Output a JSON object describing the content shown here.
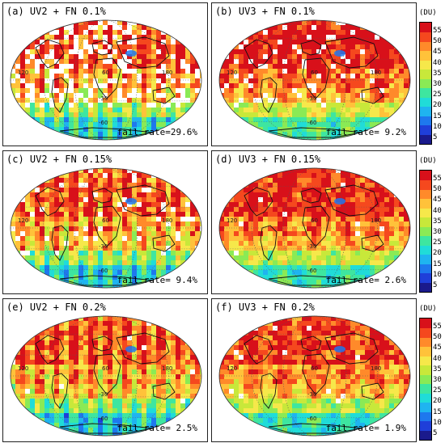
{
  "colorbar": {
    "unit": "(DU)",
    "ticks": [
      "55",
      "50",
      "45",
      "40",
      "35",
      "30",
      "25",
      "20",
      "15",
      "10",
      "5"
    ],
    "colors": [
      "#1a1a8c",
      "#1f3fd9",
      "#1e78ee",
      "#1fb4f0",
      "#20dcd8",
      "#3ee6a0",
      "#8aea55",
      "#c8e83a",
      "#f6e84a",
      "#ffc23a",
      "#ff8a2a",
      "#f5481e",
      "#d8101a"
    ]
  },
  "latitude_labels": [
    "30",
    "-30",
    "-60"
  ],
  "longitude_labels": [
    "120",
    "60",
    "180"
  ],
  "panels": [
    {
      "title": "(a) UV2 + FN 0.1%",
      "fail": "fail rate=29.6%"
    },
    {
      "title": "(b) UV3 + FN 0.1%",
      "fail": "fail rate= 9.2%"
    },
    {
      "title": "(c) UV2 + FN 0.15%",
      "fail": "fail rate= 9.4%"
    },
    {
      "title": "(d) UV3 + FN 0.15%",
      "fail": "fail rate= 2.6%"
    },
    {
      "title": "(e) UV2 + FN 0.2%",
      "fail": "fail rate= 2.5%"
    },
    {
      "title": "(f) UV3 + FN 0.2%",
      "fail": "fail rate= 1.9%"
    }
  ]
}
